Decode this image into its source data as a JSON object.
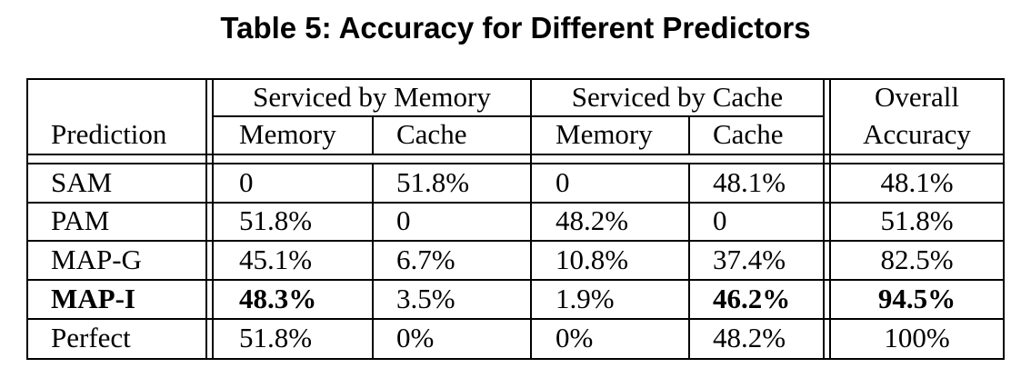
{
  "caption": "Table 5: Accuracy for Different Predictors",
  "headers": {
    "group_memory": "Serviced by Memory",
    "group_cache": "Serviced by Cache",
    "overall_1": "Overall",
    "overall_2": "Accuracy",
    "prediction": "Prediction",
    "sub_memory_1": "Memory",
    "sub_cache_1": "Cache",
    "sub_memory_2": "Memory",
    "sub_cache_2": "Cache"
  },
  "rows": [
    {
      "label": "SAM",
      "mem_mem": "0",
      "mem_cache": "51.8%",
      "cache_mem": "0",
      "cache_cache": "48.1%",
      "overall": "48.1%",
      "bold": false
    },
    {
      "label": "PAM",
      "mem_mem": "51.8%",
      "mem_cache": "0",
      "cache_mem": "48.2%",
      "cache_cache": "0",
      "overall": "51.8%",
      "bold": false
    },
    {
      "label": "MAP-G",
      "mem_mem": "45.1%",
      "mem_cache": "6.7%",
      "cache_mem": "10.8%",
      "cache_cache": "37.4%",
      "overall": "82.5%",
      "bold": false
    },
    {
      "label": "MAP-I",
      "mem_mem": "48.3%",
      "mem_cache": "3.5%",
      "cache_mem": "1.9%",
      "cache_cache": "46.2%",
      "overall": "94.5%",
      "bold": true
    },
    {
      "label": "Perfect",
      "mem_mem": "51.8%",
      "mem_cache": "0%",
      "cache_mem": "0%",
      "cache_cache": "48.2%",
      "overall": "100%",
      "bold": false
    }
  ]
}
